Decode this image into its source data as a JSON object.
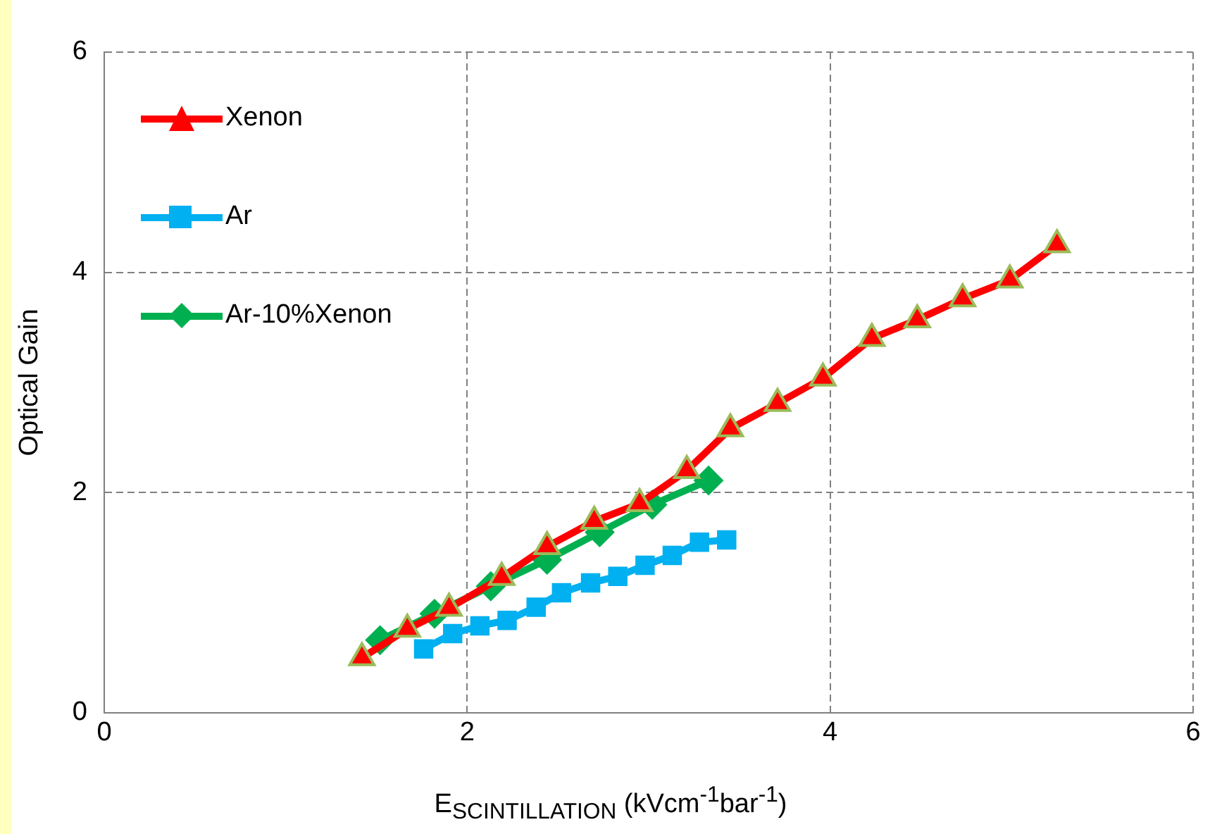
{
  "chart_data": {
    "type": "line",
    "xlabel": "E$_{SCINTILLATION}$ (kVcm$^{-1}$bar$^{-1}$)",
    "ylabel": "Optical Gain",
    "xlim": [
      0,
      6
    ],
    "xticks": [
      0,
      2,
      4,
      6
    ],
    "ylim": [
      0,
      6
    ],
    "yticks": [
      0,
      2,
      4,
      6
    ],
    "grid": true,
    "legend": "top left",
    "series": [
      {
        "name": "Xenon",
        "color": "#ff0000",
        "marker": "triangle",
        "x": [
          1.42,
          1.67,
          1.9,
          2.19,
          2.44,
          2.7,
          2.95,
          3.21,
          3.45,
          3.71,
          3.96,
          4.23,
          4.48,
          4.73,
          4.99,
          5.25
        ],
        "values": [
          0.5,
          0.76,
          0.95,
          1.23,
          1.51,
          1.74,
          1.9,
          2.2,
          2.58,
          2.81,
          3.04,
          3.4,
          3.57,
          3.76,
          3.93,
          4.25
        ]
      },
      {
        "name": "Ar",
        "color": "#00b0f0",
        "marker": "square",
        "x": [
          1.76,
          1.92,
          2.07,
          2.22,
          2.38,
          2.52,
          2.68,
          2.83,
          2.98,
          3.13,
          3.28,
          3.43
        ],
        "values": [
          0.58,
          0.72,
          0.79,
          0.84,
          0.96,
          1.09,
          1.18,
          1.24,
          1.34,
          1.43,
          1.55,
          1.57
        ]
      },
      {
        "name": "Ar-10%Xenon",
        "color": "#00b050",
        "marker": "diamond",
        "x": [
          1.52,
          1.82,
          2.13,
          2.44,
          2.73,
          3.02,
          3.33
        ],
        "values": [
          0.66,
          0.9,
          1.15,
          1.39,
          1.64,
          1.89,
          2.11
        ]
      }
    ]
  }
}
